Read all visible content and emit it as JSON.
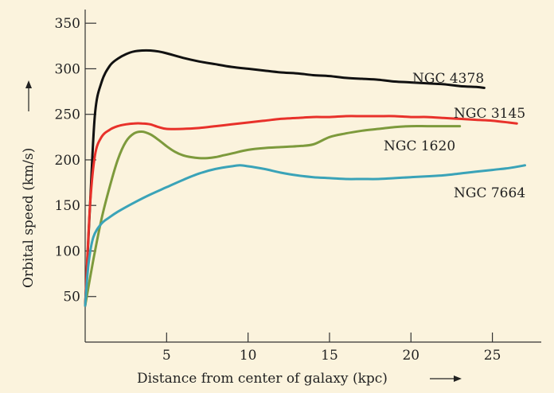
{
  "chart_data": {
    "type": "line",
    "title": "",
    "xlabel": "Distance from center of  galaxy (kpc)",
    "ylabel": "Orbital speed (km/s)",
    "xlim": [
      0,
      28
    ],
    "ylim": [
      0,
      365
    ],
    "x_ticks": [
      5,
      10,
      15,
      20,
      25
    ],
    "y_ticks": [
      50,
      100,
      150,
      200,
      250,
      300,
      350
    ],
    "grid": false,
    "legend": "inline-labels",
    "series": [
      {
        "name": "NGC 4378",
        "color": "#111111",
        "x": [
          0,
          0.3,
          0.6,
          1,
          1.5,
          2,
          2.5,
          3,
          3.5,
          4,
          4.5,
          5,
          6,
          7,
          8,
          9,
          10,
          11,
          12,
          13,
          14,
          15,
          16,
          17,
          18,
          19,
          20,
          21,
          22,
          23,
          24,
          24.5
        ],
        "y": [
          40,
          150,
          250,
          285,
          303,
          311,
          316,
          319,
          320,
          320,
          319,
          317,
          312,
          308,
          305,
          302,
          300,
          298,
          296,
          295,
          293,
          292,
          290,
          289,
          288,
          286,
          285,
          284,
          283,
          281,
          280,
          279
        ]
      },
      {
        "name": "NGC 3145",
        "color": "#e8312a",
        "x": [
          0,
          0.3,
          0.6,
          1,
          1.5,
          2,
          2.5,
          3,
          3.5,
          4,
          4.5,
          5,
          6,
          7,
          8,
          9,
          10,
          11,
          12,
          13,
          14,
          15,
          16,
          17,
          18,
          19,
          20,
          21,
          22,
          23,
          24,
          25,
          26,
          26.5
        ],
        "y": [
          40,
          150,
          205,
          225,
          233,
          237,
          239,
          240,
          240,
          239,
          236,
          234,
          234,
          235,
          237,
          239,
          241,
          243,
          245,
          246,
          247,
          247,
          248,
          248,
          248,
          248,
          247,
          247,
          246,
          245,
          244,
          243,
          241,
          240
        ]
      },
      {
        "name": "NGC 1620",
        "color": "#7d9a3c",
        "x": [
          0,
          0.5,
          1,
          1.5,
          2,
          2.5,
          3,
          3.5,
          4,
          4.5,
          5,
          5.5,
          6,
          6.5,
          7,
          7.5,
          8,
          8.5,
          9,
          10,
          11,
          12,
          13,
          14,
          15,
          16,
          17,
          18,
          19,
          20,
          21,
          22,
          23
        ],
        "y": [
          40,
          90,
          135,
          170,
          200,
          220,
          229,
          231,
          228,
          222,
          215,
          209,
          205,
          203,
          202,
          202,
          203,
          205,
          207,
          211,
          213,
          214,
          215,
          217,
          225,
          229,
          232,
          234,
          236,
          237,
          237,
          237,
          237
        ]
      },
      {
        "name": "NGC 7664",
        "color": "#3aa3b8",
        "x": [
          0,
          0.2,
          0.5,
          1,
          1.5,
          2,
          3,
          4,
          5,
          6,
          7,
          8,
          9,
          9.5,
          10,
          11,
          12,
          13,
          14,
          15,
          16,
          17,
          18,
          19,
          20,
          21,
          22,
          23,
          24,
          25,
          26,
          27
        ],
        "y": [
          40,
          85,
          115,
          130,
          137,
          143,
          153,
          162,
          170,
          178,
          185,
          190,
          193,
          194,
          193,
          190,
          186,
          183,
          181,
          180,
          179,
          179,
          179,
          180,
          181,
          182,
          183,
          185,
          187,
          189,
          191,
          194
        ]
      }
    ]
  }
}
